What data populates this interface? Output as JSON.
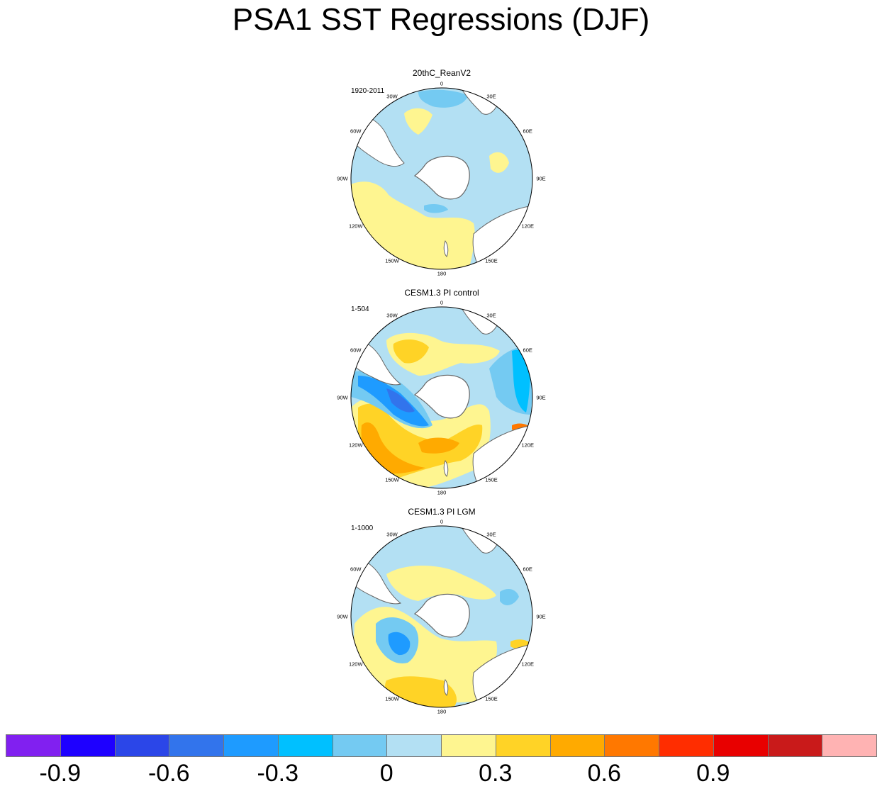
{
  "title": "PSA1 SST Regressions (DJF)",
  "panels": [
    {
      "title": "20thC_ReanV2",
      "period": "1920-2011"
    },
    {
      "title": "CESM1.3 PI control",
      "period": "1-504"
    },
    {
      "title": "CESM1.3 PI LGM",
      "period": "1-1000"
    }
  ],
  "lon_labels": [
    "0",
    "30E",
    "60E",
    "90E",
    "120E",
    "150E",
    "180",
    "150W",
    "120W",
    "90W",
    "60W",
    "30W"
  ],
  "colorbar": {
    "colors": [
      "#8120F0",
      "#1E00FF",
      "#2B46E8",
      "#3274EC",
      "#1E9BFF",
      "#00C0FF",
      "#74CAF2",
      "#B3E0F3",
      "#FEF590",
      "#FFD326",
      "#FFAA00",
      "#FF7800",
      "#FF2D00",
      "#E80000",
      "#C91A1A",
      "#FFB3B3"
    ],
    "tick_labels": [
      "-0.9",
      "-0.6",
      "-0.3",
      "0",
      "0.3",
      "0.6",
      "0.9"
    ],
    "tick_values": [
      -0.9,
      -0.6,
      -0.3,
      0,
      0.3,
      0.6,
      0.9
    ],
    "level_min": -1.05,
    "level_step": 0.15
  },
  "chart_data": [
    {
      "type": "heatmap",
      "title": "20thC_ReanV2",
      "subtitle": "1920-2011",
      "projection": "south polar stereographic",
      "variable": "SST regression on PSA1",
      "levels": [
        -1.05,
        -0.9,
        -0.75,
        -0.6,
        -0.45,
        -0.3,
        -0.15,
        0,
        0.15,
        0.3,
        0.45,
        0.6,
        0.75,
        0.9,
        1.05
      ],
      "features": [
        {
          "region": "most of Southern Ocean",
          "value_range": [
            -0.15,
            0
          ]
        },
        {
          "region": "Amundsen-Bellingshausen / 120W-150W",
          "value_range": [
            0,
            0.15
          ]
        },
        {
          "region": "South Atlantic near 30W",
          "value_range": [
            -0.3,
            -0.15
          ]
        }
      ]
    },
    {
      "type": "heatmap",
      "title": "CESM1.3 PI control",
      "subtitle": "1-504",
      "projection": "south polar stereographic",
      "variable": "SST regression on PSA1",
      "levels": [
        -1.05,
        -0.9,
        -0.75,
        -0.6,
        -0.45,
        -0.3,
        -0.15,
        0,
        0.15,
        0.3,
        0.45,
        0.6,
        0.75,
        0.9,
        1.05
      ],
      "features": [
        {
          "region": "Bellingshausen Sea near 90W",
          "value_range": [
            -0.75,
            -0.6
          ]
        },
        {
          "region": "South Pacific 120W-150W",
          "value_range": [
            0.3,
            0.45
          ]
        },
        {
          "region": "Indian Ocean near 75E",
          "value_range": [
            -0.45,
            -0.3
          ]
        },
        {
          "region": "near 110E",
          "value_range": [
            0.45,
            0.6
          ]
        },
        {
          "region": "South Atlantic near 45W",
          "value_range": [
            0.15,
            0.3
          ]
        }
      ]
    },
    {
      "type": "heatmap",
      "title": "CESM1.3 PI LGM",
      "subtitle": "1-1000",
      "projection": "south polar stereographic",
      "variable": "SST regression on PSA1",
      "levels": [
        -1.05,
        -0.9,
        -0.75,
        -0.6,
        -0.45,
        -0.3,
        -0.15,
        0,
        0.15,
        0.3,
        0.45,
        0.6,
        0.75,
        0.9,
        1.05
      ],
      "features": [
        {
          "region": "near 110W",
          "value_range": [
            -0.6,
            -0.45
          ]
        },
        {
          "region": "South Pacific 150W-180",
          "value_range": [
            0.15,
            0.3
          ]
        },
        {
          "region": "South Atlantic",
          "value_range": [
            0,
            0.15
          ]
        },
        {
          "region": "Indian Ocean near 70E",
          "value_range": [
            -0.3,
            -0.15
          ]
        }
      ]
    }
  ]
}
